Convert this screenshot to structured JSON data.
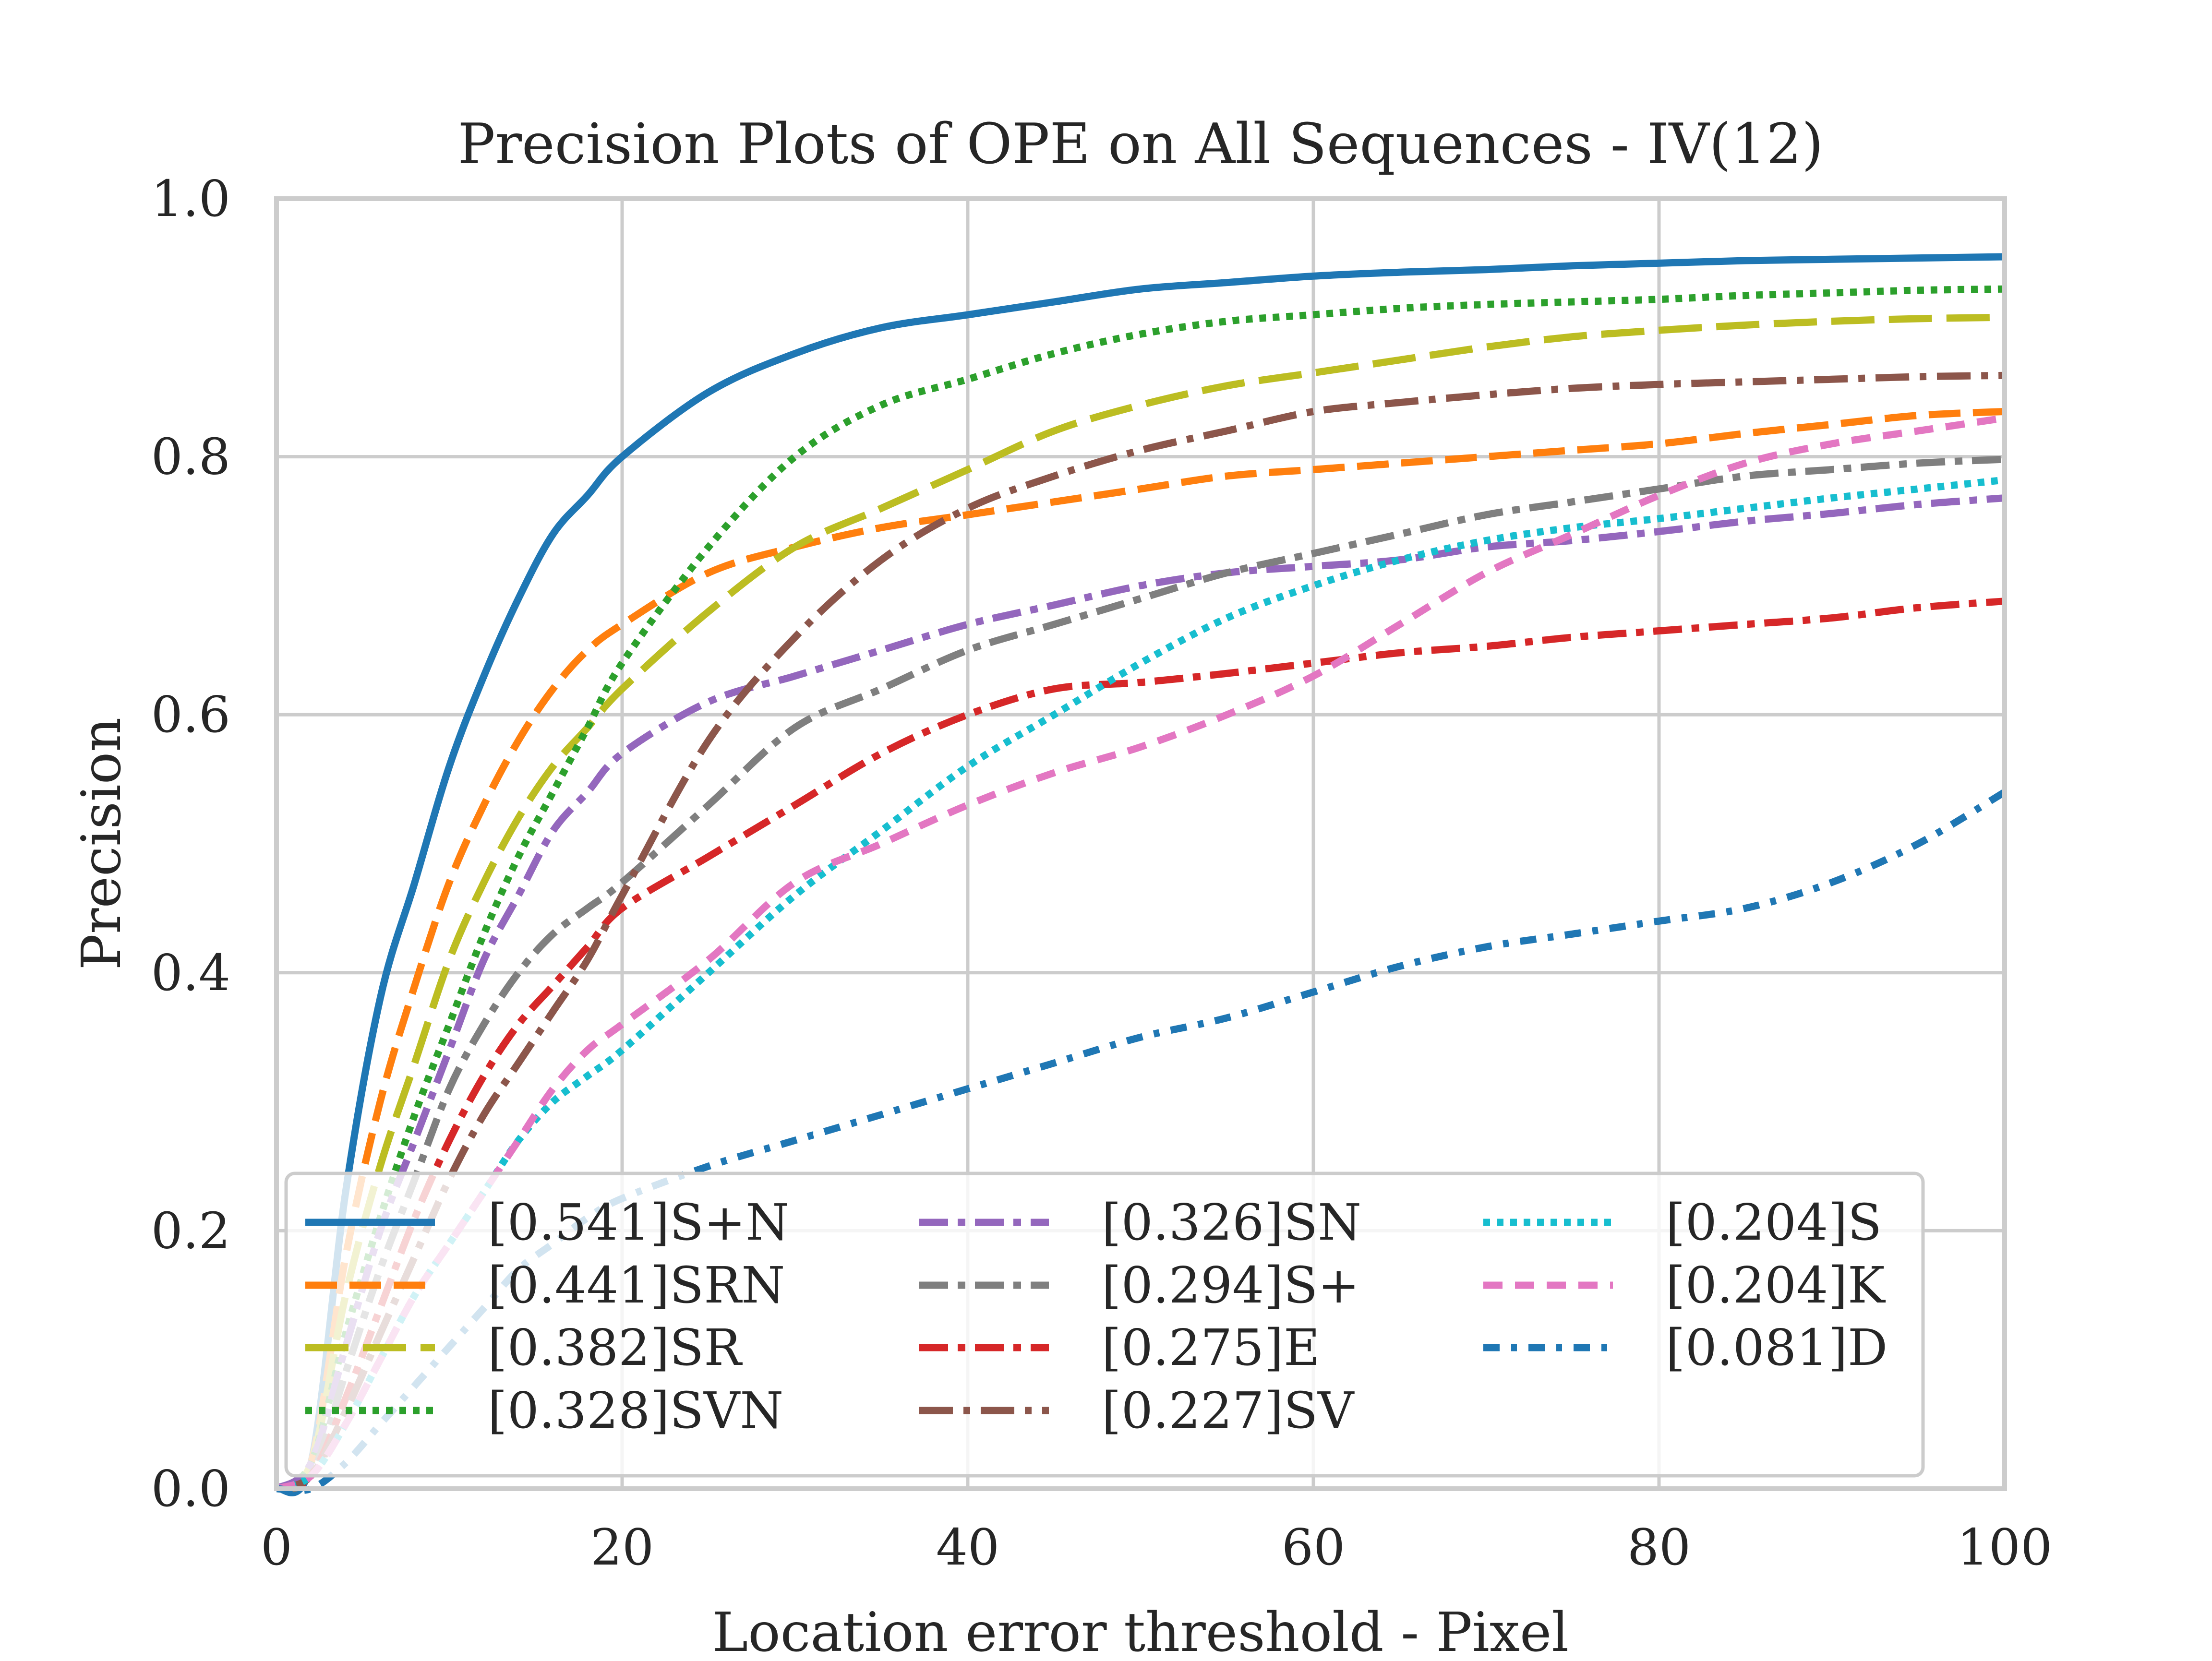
{
  "chart_data": {
    "type": "line",
    "title": "Precision Plots of OPE on All Sequences - IV(12)",
    "xlabel": "Location error threshold - Pixel",
    "ylabel": "Precision",
    "xlim": [
      0,
      100
    ],
    "ylim": [
      0,
      1.0
    ],
    "xticks": [
      "0",
      "20",
      "40",
      "60",
      "80",
      "100"
    ],
    "yticks": [
      "0.0",
      "0.2",
      "0.4",
      "0.6",
      "0.8",
      "1.0"
    ],
    "grid": true,
    "legend_position": "lower-left, 3 columns",
    "x": [
      0,
      2,
      4,
      6,
      8,
      10,
      12,
      14,
      16,
      18,
      20,
      25,
      30,
      35,
      40,
      45,
      50,
      55,
      60,
      65,
      70,
      75,
      80,
      85,
      90,
      95,
      100
    ],
    "series": [
      {
        "name": "[0.541]S+N",
        "color": "#1f77b4",
        "dash": "solid",
        "values": [
          0,
          0.02,
          0.23,
          0.38,
          0.47,
          0.56,
          0.63,
          0.69,
          0.74,
          0.77,
          0.8,
          0.85,
          0.88,
          0.9,
          0.91,
          0.92,
          0.93,
          0.935,
          0.94,
          0.943,
          0.945,
          0.948,
          0.95,
          0.952,
          0.953,
          0.954,
          0.955
        ]
      },
      {
        "name": "[0.441]SRN",
        "color": "#ff7f0e",
        "dash": "dashed",
        "values": [
          0,
          0.02,
          0.18,
          0.3,
          0.39,
          0.47,
          0.53,
          0.58,
          0.62,
          0.65,
          0.67,
          0.71,
          0.73,
          0.745,
          0.755,
          0.765,
          0.775,
          0.785,
          0.79,
          0.795,
          0.8,
          0.805,
          0.81,
          0.818,
          0.825,
          0.832,
          0.835
        ]
      },
      {
        "name": "[0.382]SR",
        "color": "#bcbd22",
        "dash": "longdash",
        "values": [
          0,
          0.02,
          0.15,
          0.25,
          0.33,
          0.41,
          0.47,
          0.52,
          0.56,
          0.59,
          0.62,
          0.68,
          0.73,
          0.76,
          0.79,
          0.82,
          0.84,
          0.855,
          0.865,
          0.875,
          0.885,
          0.893,
          0.898,
          0.902,
          0.905,
          0.907,
          0.908
        ]
      },
      {
        "name": "[0.328]SVN",
        "color": "#2ca02c",
        "dash": "dotted",
        "values": [
          0,
          0.02,
          0.12,
          0.21,
          0.29,
          0.36,
          0.43,
          0.49,
          0.54,
          0.59,
          0.64,
          0.73,
          0.8,
          0.84,
          0.86,
          0.88,
          0.895,
          0.905,
          0.91,
          0.915,
          0.918,
          0.92,
          0.922,
          0.925,
          0.927,
          0.929,
          0.93
        ]
      },
      {
        "name": "[0.326]SN",
        "color": "#9467bd",
        "dash": "dashdot",
        "values": [
          0,
          0.02,
          0.11,
          0.2,
          0.27,
          0.34,
          0.41,
          0.46,
          0.51,
          0.54,
          0.57,
          0.61,
          0.63,
          0.65,
          0.67,
          0.685,
          0.7,
          0.71,
          0.715,
          0.72,
          0.73,
          0.735,
          0.742,
          0.75,
          0.756,
          0.763,
          0.768
        ]
      },
      {
        "name": "[0.294]S+",
        "color": "#7f7f7f",
        "dash": "dashdot",
        "values": [
          0,
          0.01,
          0.09,
          0.17,
          0.24,
          0.31,
          0.36,
          0.4,
          0.43,
          0.45,
          0.47,
          0.53,
          0.59,
          0.62,
          0.65,
          0.67,
          0.69,
          0.71,
          0.725,
          0.74,
          0.755,
          0.765,
          0.775,
          0.785,
          0.79,
          0.795,
          0.798
        ]
      },
      {
        "name": "[0.275]E",
        "color": "#d62728",
        "dash": "dashdot",
        "values": [
          0,
          0.01,
          0.07,
          0.14,
          0.21,
          0.27,
          0.32,
          0.36,
          0.39,
          0.42,
          0.45,
          0.49,
          0.53,
          0.57,
          0.6,
          0.62,
          0.625,
          0.632,
          0.64,
          0.648,
          0.653,
          0.66,
          0.665,
          0.67,
          0.675,
          0.683,
          0.688
        ]
      },
      {
        "name": "[0.227]SV",
        "color": "#8c564b",
        "dash": "dashdot2",
        "values": [
          0,
          0.01,
          0.06,
          0.12,
          0.18,
          0.24,
          0.29,
          0.33,
          0.37,
          0.41,
          0.46,
          0.58,
          0.66,
          0.72,
          0.76,
          0.785,
          0.805,
          0.82,
          0.835,
          0.842,
          0.848,
          0.853,
          0.856,
          0.858,
          0.86,
          0.862,
          0.863
        ]
      },
      {
        "name": "[0.204]S",
        "color": "#17becf",
        "dash": "dotted",
        "values": [
          0,
          0.01,
          0.05,
          0.1,
          0.15,
          0.19,
          0.23,
          0.27,
          0.3,
          0.32,
          0.34,
          0.4,
          0.46,
          0.51,
          0.56,
          0.6,
          0.64,
          0.675,
          0.7,
          0.72,
          0.735,
          0.745,
          0.752,
          0.76,
          0.768,
          0.775,
          0.782
        ]
      },
      {
        "name": "[0.204]K",
        "color": "#e377c2",
        "dash": "shortdash",
        "values": [
          0,
          0.01,
          0.05,
          0.1,
          0.15,
          0.19,
          0.23,
          0.27,
          0.31,
          0.34,
          0.36,
          0.41,
          0.47,
          0.5,
          0.53,
          0.555,
          0.575,
          0.6,
          0.63,
          0.67,
          0.71,
          0.74,
          0.77,
          0.795,
          0.81,
          0.82,
          0.83
        ]
      },
      {
        "name": "[0.081]D",
        "color": "#1f77b4",
        "dash": "dashdot3",
        "values": [
          0,
          0,
          0.02,
          0.05,
          0.08,
          0.11,
          0.14,
          0.17,
          0.19,
          0.21,
          0.225,
          0.25,
          0.27,
          0.29,
          0.31,
          0.33,
          0.35,
          0.365,
          0.385,
          0.405,
          0.42,
          0.43,
          0.44,
          0.45,
          0.47,
          0.5,
          0.54
        ]
      }
    ]
  }
}
